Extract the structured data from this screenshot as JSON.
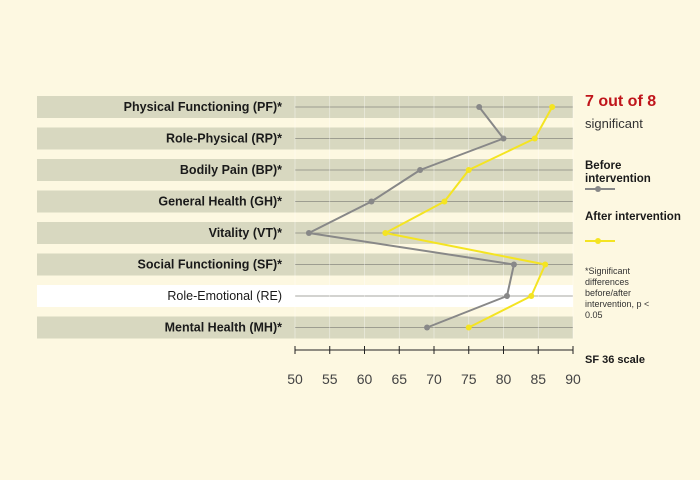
{
  "chart_data": {
    "type": "line",
    "orientation": "horizontal",
    "categories": [
      "Physical Functioning (PF)*",
      "Role-Physical (RP)*",
      "Bodily Pain (BP)*",
      "General Health (GH)*",
      "Vitality (VT)*",
      "Social Functioning (SF)*",
      "Role-Emotional (RE)",
      "Mental Health (MH)*"
    ],
    "significant": [
      true,
      true,
      true,
      true,
      true,
      true,
      false,
      true
    ],
    "series": [
      {
        "name": "Before intervention",
        "color": "#888888",
        "values": [
          76.5,
          80,
          68,
          61,
          52,
          81.5,
          80.5,
          69
        ]
      },
      {
        "name": "After intervention",
        "color": "#f4e422",
        "values": [
          87,
          84.5,
          75,
          71.5,
          63,
          86,
          84,
          75
        ]
      }
    ],
    "x_ticks": [
      "50",
      "55",
      "60",
      "65",
      "70",
      "75",
      "80",
      "85",
      "90"
    ],
    "xlim": [
      50,
      90
    ],
    "xlabel": "SF 36 scale",
    "band_color": "#d8d8c0",
    "grid": true
  },
  "annotation": {
    "count": "7 out of 8",
    "word": "significant",
    "before_label": "Before intervention",
    "after_label": "After intervention",
    "footnote": "*Significant differences before/after intervention, p < 0.05",
    "count_color": "#c0151b"
  }
}
